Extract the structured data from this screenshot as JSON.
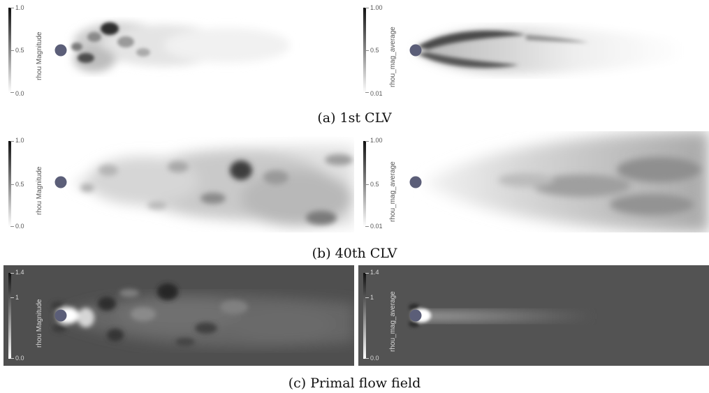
{
  "rows": [
    {
      "caption": "(a) 1st CLV",
      "left": {
        "title": "rhou Magnitude",
        "ticks": [
          "1.0",
          "0.5",
          "0.0"
        ]
      },
      "right": {
        "title": "rhou_mag_average",
        "ticks": [
          "1.00",
          "0.5",
          "0.01"
        ]
      }
    },
    {
      "caption": "(b) 40th CLV",
      "left": {
        "title": "rhou Magnitude",
        "ticks": [
          "1.0",
          "0.5",
          "0.0"
        ]
      },
      "right": {
        "title": "rhou_mag_average",
        "ticks": [
          "1.00",
          "0.5",
          "0.01"
        ]
      }
    },
    {
      "caption": "(c) Primal flow field",
      "left": {
        "title": "rhou Magnitude",
        "ticks": [
          "1.4",
          "1",
          "0.0"
        ]
      },
      "right": {
        "title": "rhou_mag_average",
        "ticks": [
          "1.4",
          "1",
          "0.0"
        ]
      }
    }
  ],
  "colors": {
    "cylinder": "#5b5e78",
    "dark_background": "#4f4f4f",
    "light_background": "#ffffff"
  }
}
